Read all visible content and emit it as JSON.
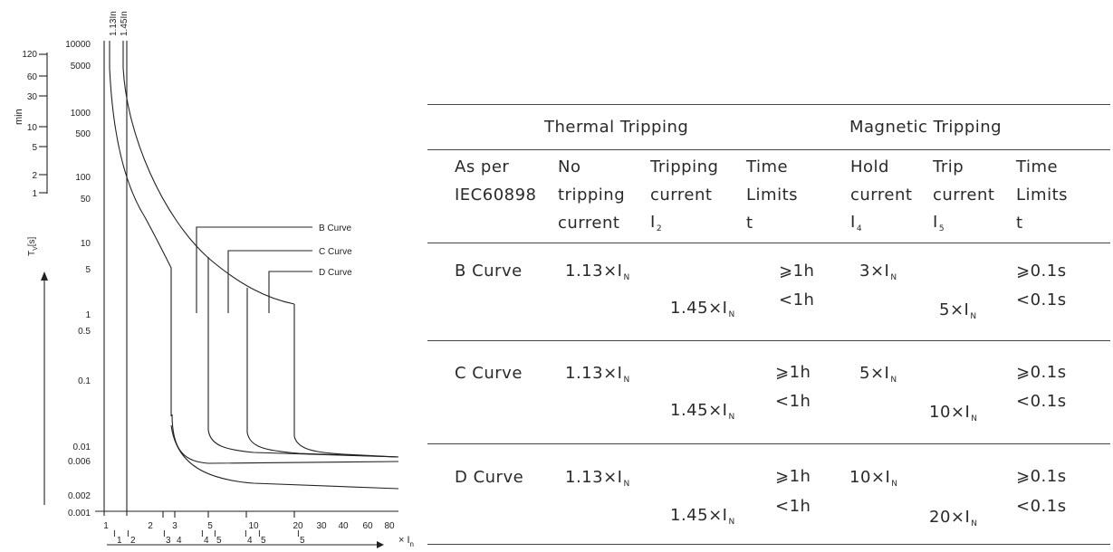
{
  "figure": {
    "top_labels": [
      "1.13In",
      "1.45In"
    ],
    "min_axis": {
      "label": "min",
      "ticks": [
        "120",
        "60",
        "30",
        "10",
        "5",
        "2",
        "1"
      ]
    },
    "sec_axis": {
      "ticks": [
        "10000",
        "5000",
        "1000",
        "500",
        "100",
        "50",
        "10",
        "5",
        "1",
        "0.5",
        "0.1",
        "0.01",
        "0.006",
        "0.002",
        "0.001"
      ]
    },
    "time_symbol": "T",
    "time_sub": "V",
    "time_unit": "[s]",
    "x_ticks": [
      "1",
      "2",
      "3",
      "5",
      "10",
      "20",
      "30",
      "40",
      "60",
      "80"
    ],
    "x_sub_labels": [
      "I",
      "1",
      "I",
      "2",
      "I",
      "3",
      "4",
      "I",
      "4",
      "I",
      "5",
      "I",
      "4",
      "I",
      "5",
      "I",
      "5"
    ],
    "x_mult": "× I",
    "x_mult_sub": "n",
    "curve_labels": [
      "B Curve",
      "C Curve",
      "D Curve"
    ]
  },
  "table": {
    "group_headers": {
      "thermal": "Thermal Tripping",
      "magnetic": "Magnetic Tripping"
    },
    "columns": {
      "as_per": "As per\nIEC60898",
      "no_trip": "No\ntripping\ncurrent",
      "trip_current_thermal": "Tripping\ncurrent",
      "i2_symbol": "I",
      "i2_sub": "2",
      "time_limits_thermal": "Time\nLimits\nt",
      "hold_current": "Hold\ncurrent",
      "i4_symbol": "I",
      "i4_sub": "4",
      "trip_current_magnetic": "Trip\ncurrent",
      "i5_symbol": "I",
      "i5_sub": "5",
      "time_limits_magnetic": "Time\nLimits\nt"
    },
    "rows": [
      {
        "name": "B Curve",
        "no_trip": "1.13×I",
        "trip": "1.45×I",
        "t_long": "⩾1h",
        "t_short": "<1h",
        "hold": "3×I",
        "trip_mag": "5×I",
        "tm_long": "⩾0.1s",
        "tm_short": "<0.1s"
      },
      {
        "name": "C Curve",
        "no_trip": "1.13×I",
        "trip": "1.45×I",
        "t_long": "⩾1h",
        "t_short": "<1h",
        "hold": "5×I",
        "trip_mag": "10×I",
        "tm_long": "⩾0.1s",
        "tm_short": "<0.1s"
      },
      {
        "name": "D Curve",
        "no_trip": "1.13×I",
        "trip": "1.45×I",
        "t_long": "⩾1h",
        "t_short": "<1h",
        "hold": "10×I",
        "trip_mag": "20×I",
        "tm_long": "⩾0.1s",
        "tm_short": "<0.1s"
      }
    ],
    "n_sub": "N"
  }
}
